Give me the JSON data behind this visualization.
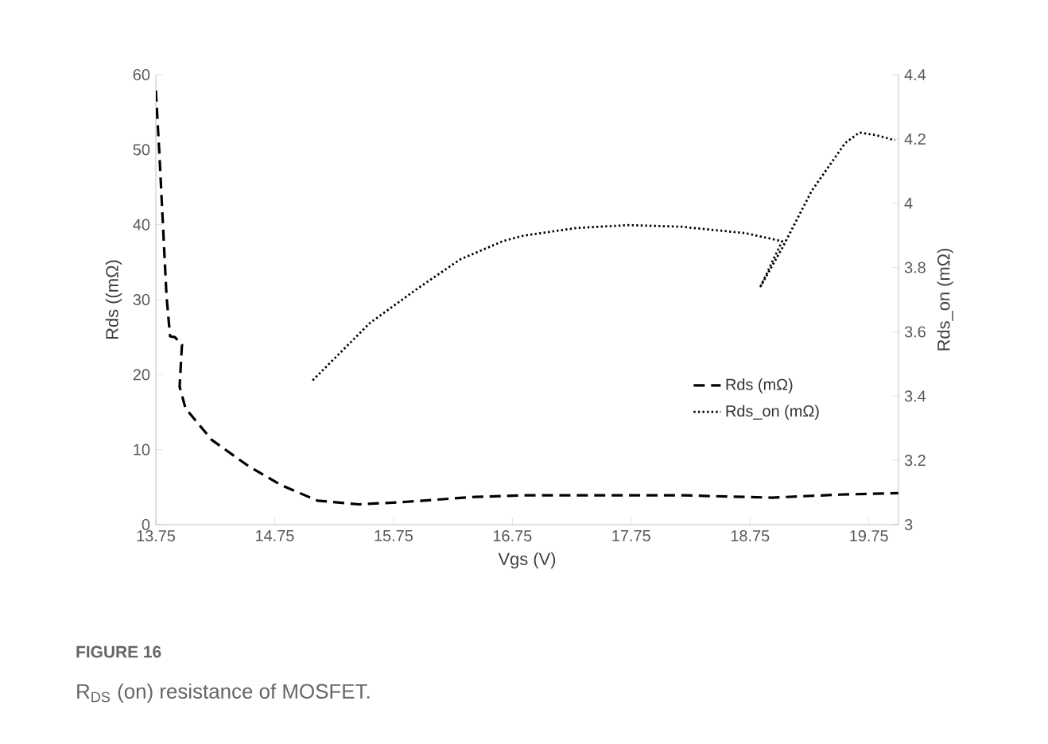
{
  "chart_data": {
    "type": "line",
    "xlabel": "Vgs (V)",
    "ylabel": "Rds ((mΩ)",
    "y2label": "Rds_on (mΩ)",
    "annotations": [
      "FIGURE 16",
      "R$_{DS}$ (on) resistance of MOSFET."
    ],
    "xlim": [
      13.75,
      20
    ],
    "xticks": [
      13.75,
      14.75,
      15.75,
      16.75,
      17.75,
      18.75,
      19.75
    ],
    "ylim": [
      0,
      60
    ],
    "yticks": [
      0,
      10,
      20,
      30,
      40,
      50,
      60
    ],
    "y2lim": [
      3,
      4.4
    ],
    "y2ticks": [
      3,
      3.2,
      3.4,
      3.6,
      3.8,
      4,
      4.2,
      4.4
    ],
    "grid": false,
    "legend": "right",
    "marker": "none",
    "series": [
      {
        "name": "Rds (mΩ)",
        "color": "#000000",
        "line_style": "dashed",
        "x": [
          13.75,
          13.78,
          13.84,
          13.87,
          13.91,
          13.97,
          13.95,
          14.0,
          14.22,
          14.53,
          14.8,
          15.11,
          15.46,
          15.82,
          16.44,
          16.84,
          17.5,
          18.2,
          18.93,
          19.5,
          20
        ],
        "values": [
          57.9,
          49.4,
          30.4,
          25.1,
          25,
          24,
          18.4,
          15.5,
          11.3,
          7.8,
          5.3,
          3.2,
          2.7,
          3.0,
          3.7,
          3.9,
          3.9,
          3.9,
          3.6,
          4.0,
          4.2
        ]
      },
      {
        "name": "Rds_on (mΩ)",
        "color": "#000000",
        "line_style": "dotted",
        "axis": "y2",
        "x": [
          15.07,
          15.55,
          15.95,
          16.31,
          16.67,
          16.84,
          17.29,
          17.73,
          18.17,
          18.71,
          19.02,
          18.84,
          19.02,
          19.27,
          19.55,
          19.67,
          19.81,
          19.97
        ],
        "values": [
          3.449,
          3.627,
          3.734,
          3.825,
          3.882,
          3.899,
          3.923,
          3.932,
          3.927,
          3.907,
          3.882,
          3.742,
          3.86,
          4.039,
          4.187,
          4.22,
          4.212,
          4.196
        ]
      }
    ]
  }
}
